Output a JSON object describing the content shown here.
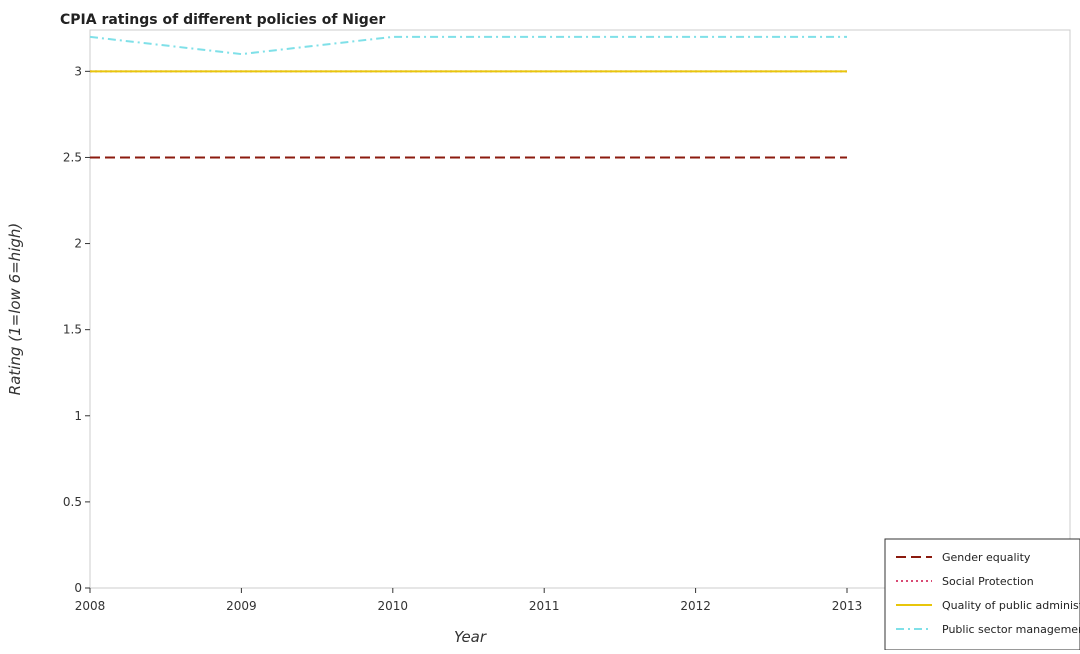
{
  "chart_data": {
    "type": "line",
    "title": "CPIA ratings of different policies of Niger",
    "xlabel": "Year",
    "ylabel": "Rating (1=low 6=high)",
    "categories": [
      "2008",
      "2009",
      "2010",
      "2011",
      "2012",
      "2013"
    ],
    "ylim": [
      0,
      3.24
    ],
    "yticks": [
      "0",
      "0.5",
      "1",
      "1.5",
      "2",
      "2.5",
      "3"
    ],
    "series": [
      {
        "name": "Gender equality",
        "values": [
          2.5,
          2.5,
          2.5,
          2.5,
          2.5,
          2.5
        ],
        "color": "#8b1a0e",
        "dash": "dashed"
      },
      {
        "name": "Social Protection",
        "values": [
          3,
          3,
          3,
          3,
          3,
          3
        ],
        "color": "#d94a74",
        "dash": "dotted"
      },
      {
        "name": "Quality of public administration",
        "values": [
          3,
          3,
          3,
          3,
          3,
          3
        ],
        "color": "#e8c60b",
        "dash": "solid"
      },
      {
        "name": "Public sector management",
        "values": [
          3.2,
          3.1,
          3.2,
          3.2,
          3.2,
          3.2
        ],
        "color": "#7fe0e8",
        "dash": "dashdot"
      }
    ],
    "grid": false,
    "legend_position": "bottom-right"
  }
}
